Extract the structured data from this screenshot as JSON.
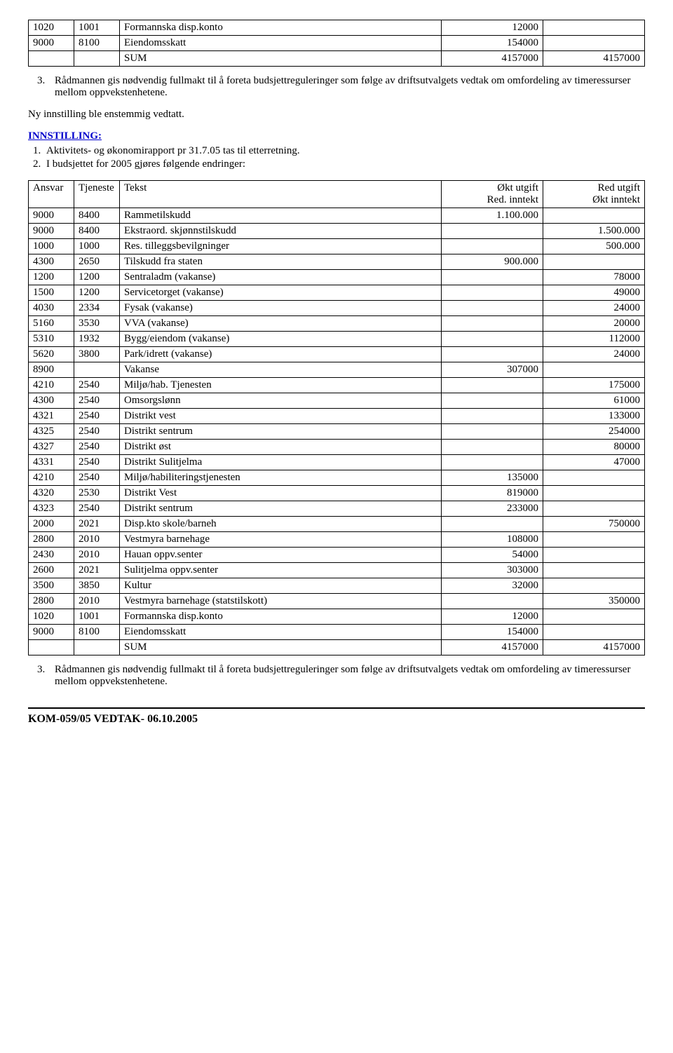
{
  "table1": {
    "rows": [
      {
        "ansvar": "1020",
        "tjeneste": "1001",
        "tekst": "Formannska disp.konto",
        "col4": "12000",
        "col5": ""
      },
      {
        "ansvar": "9000",
        "tjeneste": "8100",
        "tekst": "Eiendomsskatt",
        "col4": "154000",
        "col5": ""
      },
      {
        "ansvar": "",
        "tjeneste": "",
        "tekst": "SUM",
        "col4": "4157000",
        "col5": "4157000"
      }
    ]
  },
  "para1": {
    "num": "3.",
    "text": "Rådmannen gis nødvendig fullmakt til å foreta budsjettreguleringer som følge av driftsutvalgets vedtak om omfordeling av timeressurser mellom oppvekstenhetene."
  },
  "para2": "Ny innstilling ble enstemmig vedtatt.",
  "innstilling_label": "INNSTILLING:",
  "innstilling_items": [
    "Aktivitets- og økonomirapport pr 31.7.05 tas til etterretning.",
    "I budsjettet for 2005 gjøres følgende endringer:"
  ],
  "table2": {
    "header": {
      "ansvar": "Ansvar",
      "tjeneste": "Tjeneste",
      "tekst": "Tekst",
      "col4a": "Økt utgift",
      "col4b": "Red. inntekt",
      "col5a": "Red utgift",
      "col5b": "Økt inntekt"
    },
    "rows": [
      {
        "ansvar": "9000",
        "tjeneste": "8400",
        "tekst": "Rammetilskudd",
        "col4": "1.100.000",
        "col5": ""
      },
      {
        "ansvar": "9000",
        "tjeneste": "8400",
        "tekst": "Ekstraord. skjønnstilskudd",
        "col4": "",
        "col5": "1.500.000"
      },
      {
        "ansvar": "1000",
        "tjeneste": "1000",
        "tekst": "Res. tilleggsbevilgninger",
        "col4": "",
        "col5": "500.000"
      },
      {
        "ansvar": "4300",
        "tjeneste": "2650",
        "tekst": "Tilskudd fra staten",
        "col4": "900.000",
        "col5": ""
      },
      {
        "ansvar": "1200",
        "tjeneste": "1200",
        "tekst": "Sentraladm (vakanse)",
        "col4": "",
        "col5": "78000"
      },
      {
        "ansvar": "1500",
        "tjeneste": "1200",
        "tekst": "Servicetorget (vakanse)",
        "col4": "",
        "col5": "49000"
      },
      {
        "ansvar": "4030",
        "tjeneste": "2334",
        "tekst": "Fysak (vakanse)",
        "col4": "",
        "col5": "24000"
      },
      {
        "ansvar": "5160",
        "tjeneste": "3530",
        "tekst": "VVA (vakanse)",
        "col4": "",
        "col5": "20000"
      },
      {
        "ansvar": "5310",
        "tjeneste": "1932",
        "tekst": "Bygg/eiendom (vakanse)",
        "col4": "",
        "col5": "112000"
      },
      {
        "ansvar": "5620",
        "tjeneste": "3800",
        "tekst": "Park/idrett (vakanse)",
        "col4": "",
        "col5": "24000"
      },
      {
        "ansvar": "8900",
        "tjeneste": "",
        "tekst": "Vakanse",
        "col4": "307000",
        "col5": ""
      },
      {
        "ansvar": "4210",
        "tjeneste": "2540",
        "tekst": "Miljø/hab. Tjenesten",
        "col4": "",
        "col5": "175000"
      },
      {
        "ansvar": "4300",
        "tjeneste": "2540",
        "tekst": "Omsorgslønn",
        "col4": "",
        "col5": "61000"
      },
      {
        "ansvar": "4321",
        "tjeneste": "2540",
        "tekst": "Distrikt vest",
        "col4": "",
        "col5": "133000"
      },
      {
        "ansvar": "4325",
        "tjeneste": "2540",
        "tekst": "Distrikt sentrum",
        "col4": "",
        "col5": "254000"
      },
      {
        "ansvar": "4327",
        "tjeneste": "2540",
        "tekst": "Distrikt øst",
        "col4": "",
        "col5": "80000"
      },
      {
        "ansvar": "4331",
        "tjeneste": "2540",
        "tekst": "Distrikt Sulitjelma",
        "col4": "",
        "col5": "47000"
      },
      {
        "ansvar": "4210",
        "tjeneste": "2540",
        "tekst": "Miljø/habiliteringstjenesten",
        "col4": "135000",
        "col5": ""
      },
      {
        "ansvar": "4320",
        "tjeneste": "2530",
        "tekst": "Distrikt Vest",
        "col4": "819000",
        "col5": ""
      },
      {
        "ansvar": "4323",
        "tjeneste": "2540",
        "tekst": "Distrikt sentrum",
        "col4": "233000",
        "col5": ""
      },
      {
        "ansvar": "2000",
        "tjeneste": "2021",
        "tekst": "Disp.kto skole/barneh",
        "col4": "",
        "col5": "750000"
      },
      {
        "ansvar": "2800",
        "tjeneste": "2010",
        "tekst": "Vestmyra barnehage",
        "col4": "108000",
        "col5": ""
      },
      {
        "ansvar": "2430",
        "tjeneste": "2010",
        "tekst": "Hauan oppv.senter",
        "col4": "54000",
        "col5": ""
      },
      {
        "ansvar": "2600",
        "tjeneste": "2021",
        "tekst": "Sulitjelma oppv.senter",
        "col4": "303000",
        "col5": ""
      },
      {
        "ansvar": "3500",
        "tjeneste": "3850",
        "tekst": "Kultur",
        "col4": "32000",
        "col5": ""
      },
      {
        "ansvar": "2800",
        "tjeneste": "2010",
        "tekst": "Vestmyra barnehage (statstilskott)",
        "col4": "",
        "col5": "350000"
      },
      {
        "ansvar": "1020",
        "tjeneste": "1001",
        "tekst": "Formannska disp.konto",
        "col4": "12000",
        "col5": ""
      },
      {
        "ansvar": "9000",
        "tjeneste": "8100",
        "tekst": "Eiendomsskatt",
        "col4": "154000",
        "col5": ""
      },
      {
        "ansvar": "",
        "tjeneste": "",
        "tekst": "SUM",
        "col4": "4157000",
        "col5": "4157000"
      }
    ]
  },
  "para3": {
    "num": "3.",
    "text": "Rådmannen gis nødvendig fullmakt til å foreta budsjettreguleringer som følge av driftsutvalgets vedtak om omfordeling av timeressurser mellom oppvekstenhetene."
  },
  "footer": "KOM-059/05 VEDTAK-  06.10.2005"
}
